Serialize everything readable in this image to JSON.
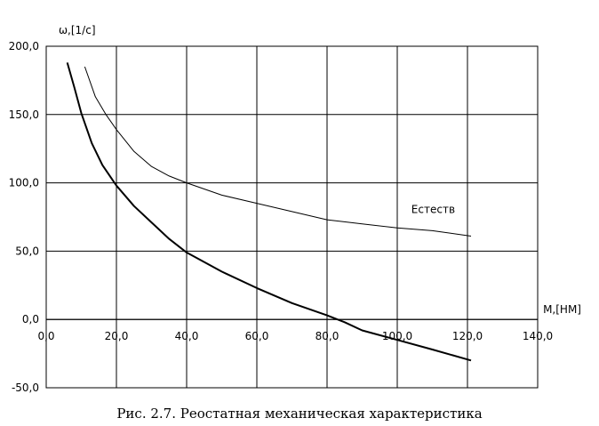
{
  "caption": "Рис. 2.7. Реостатная механическая характеристика",
  "chart_data": {
    "type": "line",
    "xlabel": "M,[НМ]",
    "ylabel": "ω,[1/с]",
    "xlim": [
      0,
      140
    ],
    "ylim": [
      -50,
      200
    ],
    "x_ticks": [
      0,
      20,
      40,
      60,
      80,
      100,
      120,
      140
    ],
    "y_ticks": [
      -50,
      0,
      50,
      100,
      150,
      200
    ],
    "x_tick_labels": [
      "0,0",
      "20,0",
      "40,0",
      "60,0",
      "80,0",
      "100,0",
      "120,0",
      "140,0"
    ],
    "y_tick_labels": [
      "-50,0",
      "0,0",
      "50,0",
      "100,0",
      "150,0",
      "200,0"
    ],
    "grid": true,
    "series": [
      {
        "name": "Естеств",
        "color": "#000000",
        "x": [
          11,
          14,
          17,
          20,
          25,
          30,
          35,
          40,
          50,
          60,
          70,
          80,
          90,
          100,
          110,
          121
        ],
        "y": [
          185,
          163,
          150,
          139,
          123,
          112,
          105,
          100,
          91,
          85,
          79,
          73,
          70,
          67,
          65,
          61
        ]
      },
      {
        "name": "",
        "color": "#000000",
        "x": [
          6,
          8,
          10,
          13,
          16,
          20,
          25,
          30,
          35,
          40,
          50,
          60,
          70,
          80,
          85,
          90,
          100,
          110,
          121
        ],
        "y": [
          188,
          170,
          151,
          129,
          113,
          98,
          83,
          71,
          59,
          49,
          35,
          23,
          12,
          3,
          -2,
          -8,
          -15,
          -22,
          -30
        ]
      }
    ],
    "annotation": {
      "text": "Естеств",
      "x": 104,
      "y": 78
    }
  }
}
